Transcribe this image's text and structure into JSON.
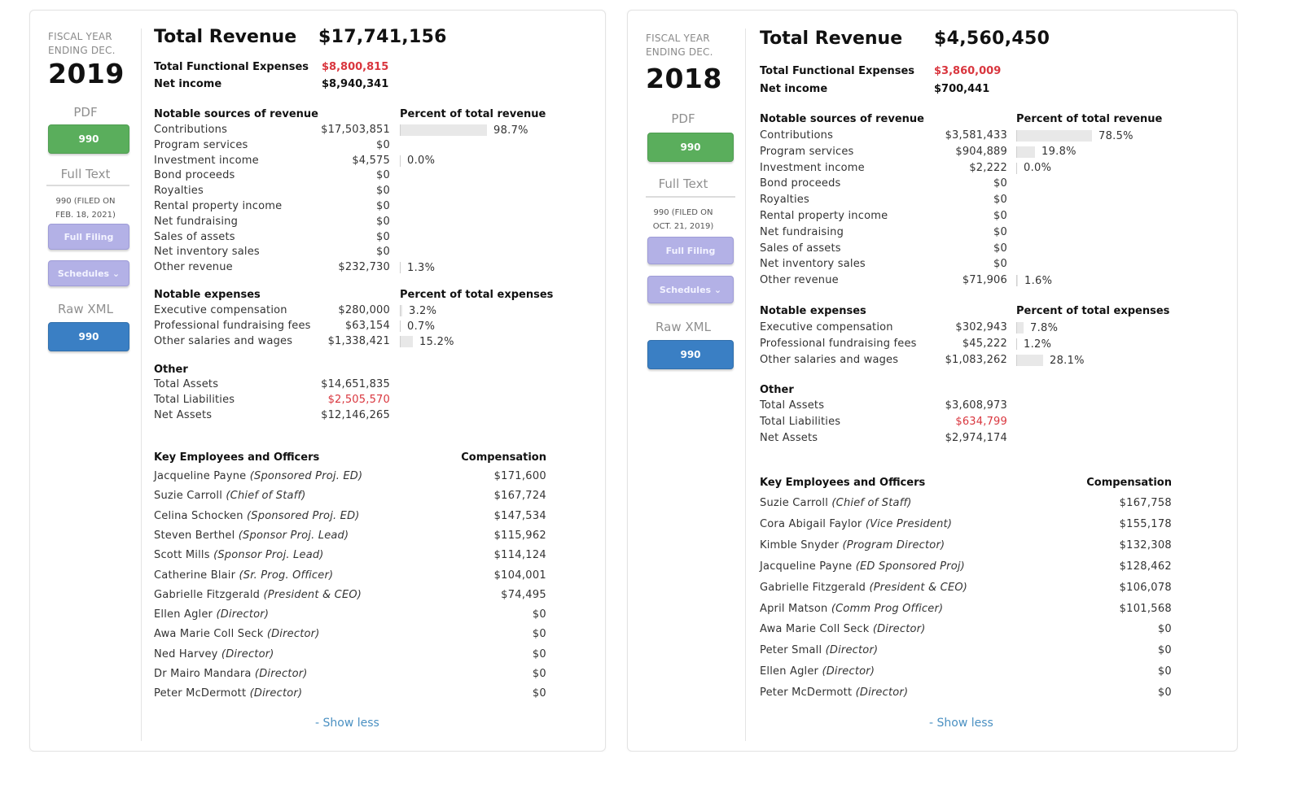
{
  "cards": [
    {
      "fiscal_label_1": "FISCAL YEAR",
      "fiscal_label_2": "ENDING DEC.",
      "year": "2019",
      "pdf_label": "PDF",
      "pdf_button": "990",
      "full_text_label": "Full Text",
      "filed_1": "990 (FILED ON",
      "filed_2": "FEB. 18, 2021)",
      "full_filing_button": "Full Filing",
      "schedules_button": "Schedules ⌄",
      "raw_xml_label": "Raw XML",
      "xml_button": "990",
      "total_revenue_label": "Total Revenue",
      "total_revenue": "$17,741,156",
      "functional_expenses_label": "Total Functional Expenses",
      "functional_expenses": "$8,800,815",
      "net_income_label": "Net income",
      "net_income": "$8,940,341",
      "revenue_head": "Notable sources of revenue",
      "revenue_pct_head": "Percent of total revenue",
      "revenue": [
        {
          "label": "Contributions",
          "value": "$17,503,851",
          "pct": "98.7%",
          "frac": 0.987
        },
        {
          "label": "Program services",
          "value": "$0"
        },
        {
          "label": "Investment income",
          "value": "$4,575",
          "pct": "0.0%",
          "frac": 0.0
        },
        {
          "label": "Bond proceeds",
          "value": "$0"
        },
        {
          "label": "Royalties",
          "value": "$0"
        },
        {
          "label": "Rental property income",
          "value": "$0"
        },
        {
          "label": "Net fundraising",
          "value": "$0"
        },
        {
          "label": "Sales of assets",
          "value": "$0"
        },
        {
          "label": "Net inventory sales",
          "value": "$0"
        },
        {
          "label": "Other revenue",
          "value": "$232,730",
          "pct": "1.3%",
          "frac": 0.013
        }
      ],
      "expenses_head": "Notable expenses",
      "expenses_pct_head": "Percent of total expenses",
      "expenses": [
        {
          "label": "Executive compensation",
          "value": "$280,000",
          "pct": "3.2%",
          "frac": 0.032
        },
        {
          "label": "Professional fundraising fees",
          "value": "$63,154",
          "pct": "0.7%",
          "frac": 0.007
        },
        {
          "label": "Other salaries and wages",
          "value": "$1,338,421",
          "pct": "15.2%",
          "frac": 0.152
        }
      ],
      "other_head": "Other",
      "other": [
        {
          "label": "Total Assets",
          "value": "$14,651,835",
          "red": false
        },
        {
          "label": "Total Liabilities",
          "value": "$2,505,570",
          "red": true
        },
        {
          "label": "Net Assets",
          "value": "$12,146,265",
          "red": false
        }
      ],
      "employees_head": "Key Employees and Officers",
      "compensation_head": "Compensation",
      "employees": [
        {
          "name": "Jacqueline Payne",
          "role": "(Sponsored Proj. ED)",
          "comp": "$171,600"
        },
        {
          "name": "Suzie Carroll",
          "role": "(Chief of Staff)",
          "comp": "$167,724"
        },
        {
          "name": "Celina Schocken",
          "role": "(Sponsored Proj. ED)",
          "comp": "$147,534"
        },
        {
          "name": "Steven Berthel",
          "role": "(Sponsor Proj. Lead)",
          "comp": "$115,962"
        },
        {
          "name": "Scott Mills",
          "role": "(Sponsor Proj. Lead)",
          "comp": "$114,124"
        },
        {
          "name": "Catherine Blair",
          "role": "(Sr. Prog. Officer)",
          "comp": "$104,001"
        },
        {
          "name": "Gabrielle Fitzgerald",
          "role": "(President & CEO)",
          "comp": "$74,495"
        },
        {
          "name": "Ellen Agler",
          "role": "(Director)",
          "comp": "$0"
        },
        {
          "name": "Awa Marie Coll Seck",
          "role": "(Director)",
          "comp": "$0"
        },
        {
          "name": "Ned Harvey",
          "role": "(Director)",
          "comp": "$0"
        },
        {
          "name": "Dr Mairo Mandara",
          "role": "(Director)",
          "comp": "$0"
        },
        {
          "name": "Peter McDermott",
          "role": "(Director)",
          "comp": "$0"
        }
      ],
      "show_less": "- Show less"
    },
    {
      "fiscal_label_1": "FISCAL YEAR",
      "fiscal_label_2": "ENDING DEC.",
      "year": "2018",
      "pdf_label": "PDF",
      "pdf_button": "990",
      "full_text_label": "Full Text",
      "filed_1": "990 (FILED ON",
      "filed_2": "OCT. 21, 2019)",
      "full_filing_button": "Full Filing",
      "schedules_button": "Schedules ⌄",
      "raw_xml_label": "Raw XML",
      "xml_button": "990",
      "total_revenue_label": "Total Revenue",
      "total_revenue": "$4,560,450",
      "functional_expenses_label": "Total Functional Expenses",
      "functional_expenses": "$3,860,009",
      "net_income_label": "Net income",
      "net_income": "$700,441",
      "revenue_head": "Notable sources of revenue",
      "revenue_pct_head": "Percent of total revenue",
      "revenue": [
        {
          "label": "Contributions",
          "value": "$3,581,433",
          "pct": "78.5%",
          "frac": 0.785
        },
        {
          "label": "Program services",
          "value": "$904,889",
          "pct": "19.8%",
          "frac": 0.198
        },
        {
          "label": "Investment income",
          "value": "$2,222",
          "pct": "0.0%",
          "frac": 0.0
        },
        {
          "label": "Bond proceeds",
          "value": "$0"
        },
        {
          "label": "Royalties",
          "value": "$0"
        },
        {
          "label": "Rental property income",
          "value": "$0"
        },
        {
          "label": "Net fundraising",
          "value": "$0"
        },
        {
          "label": "Sales of assets",
          "value": "$0"
        },
        {
          "label": "Net inventory sales",
          "value": "$0"
        },
        {
          "label": "Other revenue",
          "value": "$71,906",
          "pct": "1.6%",
          "frac": 0.016
        }
      ],
      "expenses_head": "Notable expenses",
      "expenses_pct_head": "Percent of total expenses",
      "expenses": [
        {
          "label": "Executive compensation",
          "value": "$302,943",
          "pct": "7.8%",
          "frac": 0.078
        },
        {
          "label": "Professional fundraising fees",
          "value": "$45,222",
          "pct": "1.2%",
          "frac": 0.012
        },
        {
          "label": "Other salaries and wages",
          "value": "$1,083,262",
          "pct": "28.1%",
          "frac": 0.281
        }
      ],
      "other_head": "Other",
      "other": [
        {
          "label": "Total Assets",
          "value": "$3,608,973",
          "red": false
        },
        {
          "label": "Total Liabilities",
          "value": "$634,799",
          "red": true
        },
        {
          "label": "Net Assets",
          "value": "$2,974,174",
          "red": false
        }
      ],
      "employees_head": "Key Employees and Officers",
      "compensation_head": "Compensation",
      "employees": [
        {
          "name": "Suzie Carroll",
          "role": "(Chief of Staff)",
          "comp": "$167,758"
        },
        {
          "name": "Cora Abigail Faylor",
          "role": "(Vice President)",
          "comp": "$155,178"
        },
        {
          "name": "Kimble Snyder",
          "role": "(Program Director)",
          "comp": "$132,308"
        },
        {
          "name": "Jacqueline Payne",
          "role": "(ED Sponsored Proj)",
          "comp": "$128,462"
        },
        {
          "name": "Gabrielle Fitzgerald",
          "role": "(President & CEO)",
          "comp": "$106,078"
        },
        {
          "name": "April Matson",
          "role": "(Comm Prog Officer)",
          "comp": "$101,568"
        },
        {
          "name": "Awa Marie Coll Seck",
          "role": "(Director)",
          "comp": "$0"
        },
        {
          "name": "Peter Small",
          "role": "(Director)",
          "comp": "$0"
        },
        {
          "name": "Ellen Agler",
          "role": "(Director)",
          "comp": "$0"
        },
        {
          "name": "Peter McDermott",
          "role": "(Director)",
          "comp": "$0"
        }
      ],
      "show_less": "- Show less"
    }
  ],
  "colors": {
    "red": "#d9363e",
    "pdf_button": "#5aae5c",
    "filing_button": "#b3b1e6",
    "xml_button": "#3a7fc4",
    "link": "#4a90c2"
  }
}
